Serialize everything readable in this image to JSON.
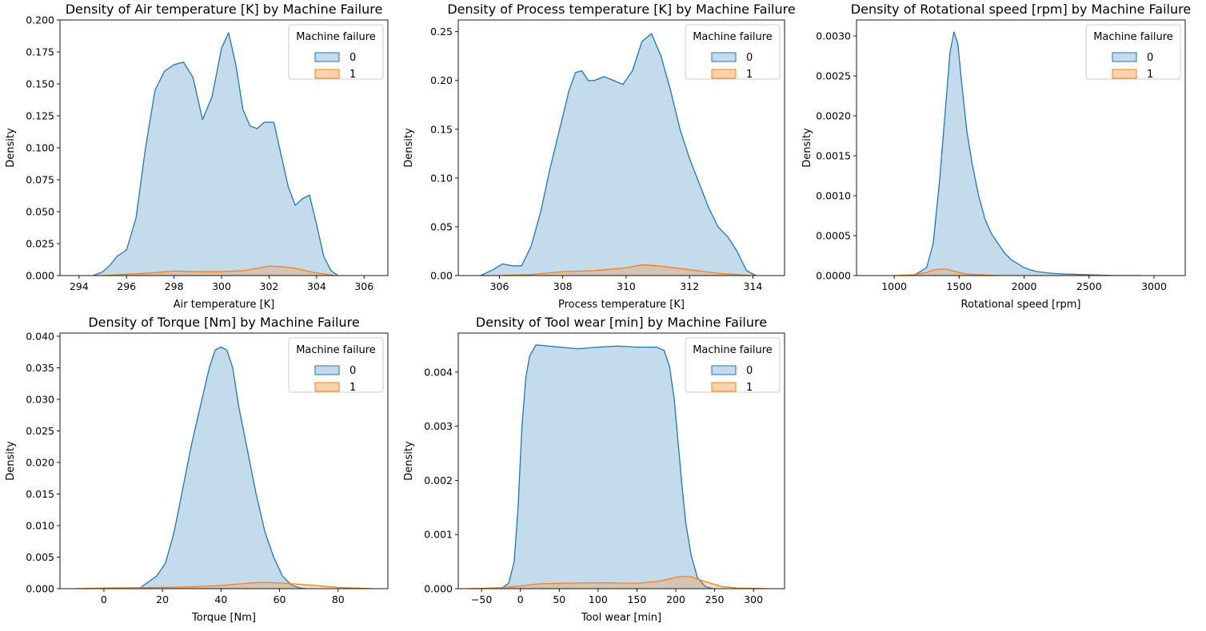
{
  "colors": {
    "class0": "#1f77b4",
    "class1": "#ff7f0e",
    "class0_fill": "#c4dbec",
    "class1_fill": "#fdd9b5"
  },
  "legend": {
    "title": "Machine failure",
    "entries": [
      "0",
      "1"
    ]
  },
  "chart_data": [
    {
      "type": "area",
      "title": "Density of Air temperature [K] by Machine Failure",
      "xlabel": "Air temperature [K]",
      "ylabel": "Density",
      "xlim": [
        293.2,
        307.0
      ],
      "ylim": [
        0,
        0.2
      ],
      "xticks": [
        294,
        296,
        298,
        300,
        302,
        304,
        306
      ],
      "yticks": [
        0.0,
        0.025,
        0.05,
        0.075,
        0.1,
        0.125,
        0.15,
        0.175,
        0.2
      ],
      "ytick_labels": [
        "0.000",
        "0.025",
        "0.050",
        "0.075",
        "0.100",
        "0.125",
        "0.150",
        "0.175",
        "0.200"
      ],
      "legend_position": "top-right",
      "grid": false,
      "series": [
        {
          "name": "0",
          "x": [
            294.6,
            295.0,
            295.3,
            295.6,
            296.0,
            296.4,
            296.8,
            297.2,
            297.6,
            298.0,
            298.4,
            298.8,
            299.2,
            299.6,
            300.0,
            300.3,
            300.6,
            300.9,
            301.2,
            301.5,
            301.8,
            302.2,
            302.5,
            302.8,
            303.1,
            303.4,
            303.7,
            304.0,
            304.3,
            304.6,
            304.9
          ],
          "y": [
            0.0,
            0.003,
            0.008,
            0.015,
            0.02,
            0.045,
            0.1,
            0.145,
            0.16,
            0.165,
            0.167,
            0.155,
            0.122,
            0.14,
            0.178,
            0.19,
            0.165,
            0.13,
            0.117,
            0.115,
            0.12,
            0.12,
            0.095,
            0.07,
            0.055,
            0.06,
            0.063,
            0.04,
            0.015,
            0.004,
            0.0
          ]
        },
        {
          "name": "1",
          "x": [
            295.0,
            296.0,
            297.0,
            298.0,
            299.0,
            300.0,
            301.0,
            302.0,
            302.5,
            303.0,
            304.0,
            304.8
          ],
          "y": [
            0.0,
            0.001,
            0.002,
            0.0035,
            0.003,
            0.003,
            0.004,
            0.0075,
            0.007,
            0.006,
            0.002,
            0.0
          ]
        }
      ]
    },
    {
      "type": "area",
      "title": "Density of Process temperature [K] by Machine Failure",
      "xlabel": "Process temperature [K]",
      "ylabel": "Density",
      "xlim": [
        304.7,
        315.0
      ],
      "ylim": [
        0,
        0.262
      ],
      "xticks": [
        306,
        308,
        310,
        312,
        314
      ],
      "yticks": [
        0.0,
        0.05,
        0.1,
        0.15,
        0.2,
        0.25
      ],
      "ytick_labels": [
        "0.00",
        "0.05",
        "0.10",
        "0.15",
        "0.20",
        "0.25"
      ],
      "legend_position": "top-right",
      "grid": false,
      "series": [
        {
          "name": "0",
          "x": [
            305.4,
            305.8,
            306.1,
            306.4,
            306.7,
            307.0,
            307.3,
            307.6,
            307.9,
            308.2,
            308.4,
            308.6,
            308.8,
            309.0,
            309.3,
            309.6,
            309.9,
            310.2,
            310.5,
            310.8,
            311.1,
            311.4,
            311.7,
            312.0,
            312.3,
            312.6,
            312.9,
            313.2,
            313.5,
            313.8,
            314.1
          ],
          "y": [
            0.0,
            0.006,
            0.012,
            0.01,
            0.01,
            0.03,
            0.065,
            0.11,
            0.15,
            0.19,
            0.208,
            0.21,
            0.2,
            0.2,
            0.204,
            0.2,
            0.196,
            0.21,
            0.24,
            0.248,
            0.225,
            0.19,
            0.15,
            0.12,
            0.095,
            0.07,
            0.05,
            0.04,
            0.025,
            0.005,
            0.0
          ]
        },
        {
          "name": "1",
          "x": [
            306.0,
            307.0,
            308.0,
            309.0,
            310.0,
            310.5,
            311.0,
            312.0,
            313.0,
            314.0
          ],
          "y": [
            0.0,
            0.001,
            0.004,
            0.005,
            0.008,
            0.011,
            0.01,
            0.006,
            0.002,
            0.0
          ]
        }
      ]
    },
    {
      "type": "area",
      "title": "Density of Rotational speed [rpm] by Machine Failure",
      "xlabel": "Rotational speed [rpm]",
      "ylabel": "Density",
      "xlim": [
        710,
        3240
      ],
      "ylim": [
        0,
        0.0032
      ],
      "xticks": [
        1000,
        1500,
        2000,
        2500,
        3000
      ],
      "yticks": [
        0.0,
        0.0005,
        0.001,
        0.0015,
        0.002,
        0.0025,
        0.003
      ],
      "ytick_labels": [
        "0.0000",
        "0.0005",
        "0.0010",
        "0.0015",
        "0.0020",
        "0.0025",
        "0.0030"
      ],
      "legend_position": "top-right",
      "grid": false,
      "series": [
        {
          "name": "0",
          "x": [
            1150,
            1250,
            1300,
            1350,
            1400,
            1430,
            1460,
            1490,
            1520,
            1560,
            1600,
            1650,
            1700,
            1750,
            1800,
            1850,
            1900,
            1950,
            2000,
            2050,
            2100,
            2200,
            2300,
            2500,
            2700,
            2900
          ],
          "y": [
            0.0,
            0.0001,
            0.0004,
            0.0012,
            0.0022,
            0.0028,
            0.00305,
            0.0029,
            0.0024,
            0.0018,
            0.0014,
            0.001,
            0.0007,
            0.00052,
            0.0004,
            0.00028,
            0.0002,
            0.00015,
            0.0001,
            7e-05,
            5e-05,
            3e-05,
            2e-05,
            1e-05,
            0.0,
            0.0
          ]
        },
        {
          "name": "1",
          "x": [
            1000,
            1150,
            1250,
            1300,
            1350,
            1400,
            1450,
            1500,
            1550,
            1650,
            1800,
            2000,
            2500,
            2900
          ],
          "y": [
            0.0,
            1e-05,
            4e-05,
            7e-05,
            8e-05,
            8e-05,
            6e-05,
            4e-05,
            2e-05,
            1e-05,
            0.0,
            0.0,
            0.0,
            0.0
          ]
        }
      ]
    },
    {
      "type": "area",
      "title": "Density of Torque [Nm] by Machine Failure",
      "xlabel": "Torque [Nm]",
      "ylabel": "Density",
      "xlim": [
        -15,
        97
      ],
      "ylim": [
        0,
        0.0405
      ],
      "xticks": [
        0,
        20,
        40,
        60,
        80
      ],
      "yticks": [
        0.0,
        0.005,
        0.01,
        0.015,
        0.02,
        0.025,
        0.03,
        0.035,
        0.04
      ],
      "ytick_labels": [
        "0.000",
        "0.005",
        "0.010",
        "0.015",
        "0.020",
        "0.025",
        "0.030",
        "0.035",
        "0.040"
      ],
      "legend_position": "top-right",
      "grid": false,
      "series": [
        {
          "name": "0",
          "x": [
            12,
            15,
            18,
            21,
            24,
            27,
            30,
            33,
            36,
            38,
            40,
            42,
            44,
            46,
            49,
            52,
            55,
            58,
            61,
            64,
            67,
            69
          ],
          "y": [
            0.0,
            0.001,
            0.002,
            0.004,
            0.009,
            0.016,
            0.023,
            0.029,
            0.035,
            0.0378,
            0.0383,
            0.0378,
            0.035,
            0.029,
            0.022,
            0.015,
            0.009,
            0.005,
            0.002,
            0.0006,
            0.0001,
            0.0
          ]
        },
        {
          "name": "1",
          "x": [
            -10,
            0,
            10,
            20,
            30,
            40,
            50,
            55,
            60,
            70,
            80,
            92
          ],
          "y": [
            0.0,
            0.0001,
            0.00015,
            0.0002,
            0.0003,
            0.0005,
            0.0009,
            0.001,
            0.0009,
            0.0006,
            0.0002,
            0.0
          ]
        }
      ]
    },
    {
      "type": "area",
      "title": "Density of Tool wear [min] by Machine Failure",
      "xlabel": "Tool wear [min]",
      "ylabel": "Density",
      "xlim": [
        -80,
        340
      ],
      "ylim": [
        0,
        0.00472
      ],
      "xticks": [
        -50,
        0,
        50,
        100,
        150,
        200,
        250,
        300
      ],
      "yticks": [
        0.0,
        0.001,
        0.002,
        0.003,
        0.004
      ],
      "ytick_labels": [
        "0.000",
        "0.001",
        "0.002",
        "0.003",
        "0.004"
      ],
      "legend_position": "top-right",
      "grid": false,
      "series": [
        {
          "name": "0",
          "x": [
            -25,
            -15,
            -8,
            -3,
            2,
            7,
            12,
            20,
            30,
            50,
            75,
            100,
            125,
            150,
            175,
            185,
            192,
            198,
            203,
            208,
            213,
            220,
            228,
            238,
            248
          ],
          "y": [
            0.0,
            0.0001,
            0.0005,
            0.0015,
            0.003,
            0.0039,
            0.0043,
            0.0045,
            0.00449,
            0.00446,
            0.00443,
            0.00446,
            0.00448,
            0.00446,
            0.00446,
            0.0044,
            0.0041,
            0.0035,
            0.0027,
            0.0019,
            0.0012,
            0.0006,
            0.0002,
            4e-05,
            0.0
          ]
        },
        {
          "name": "1",
          "x": [
            -70,
            -50,
            -25,
            0,
            25,
            50,
            100,
            150,
            180,
            200,
            210,
            220,
            240,
            260,
            280,
            320
          ],
          "y": [
            0.0,
            5e-06,
            2e-05,
            5e-05,
            9e-05,
            0.0001,
            0.00011,
            0.0001,
            0.00014,
            0.00021,
            0.00023,
            0.00022,
            0.00012,
            4e-05,
            1e-05,
            0.0
          ]
        }
      ]
    }
  ]
}
